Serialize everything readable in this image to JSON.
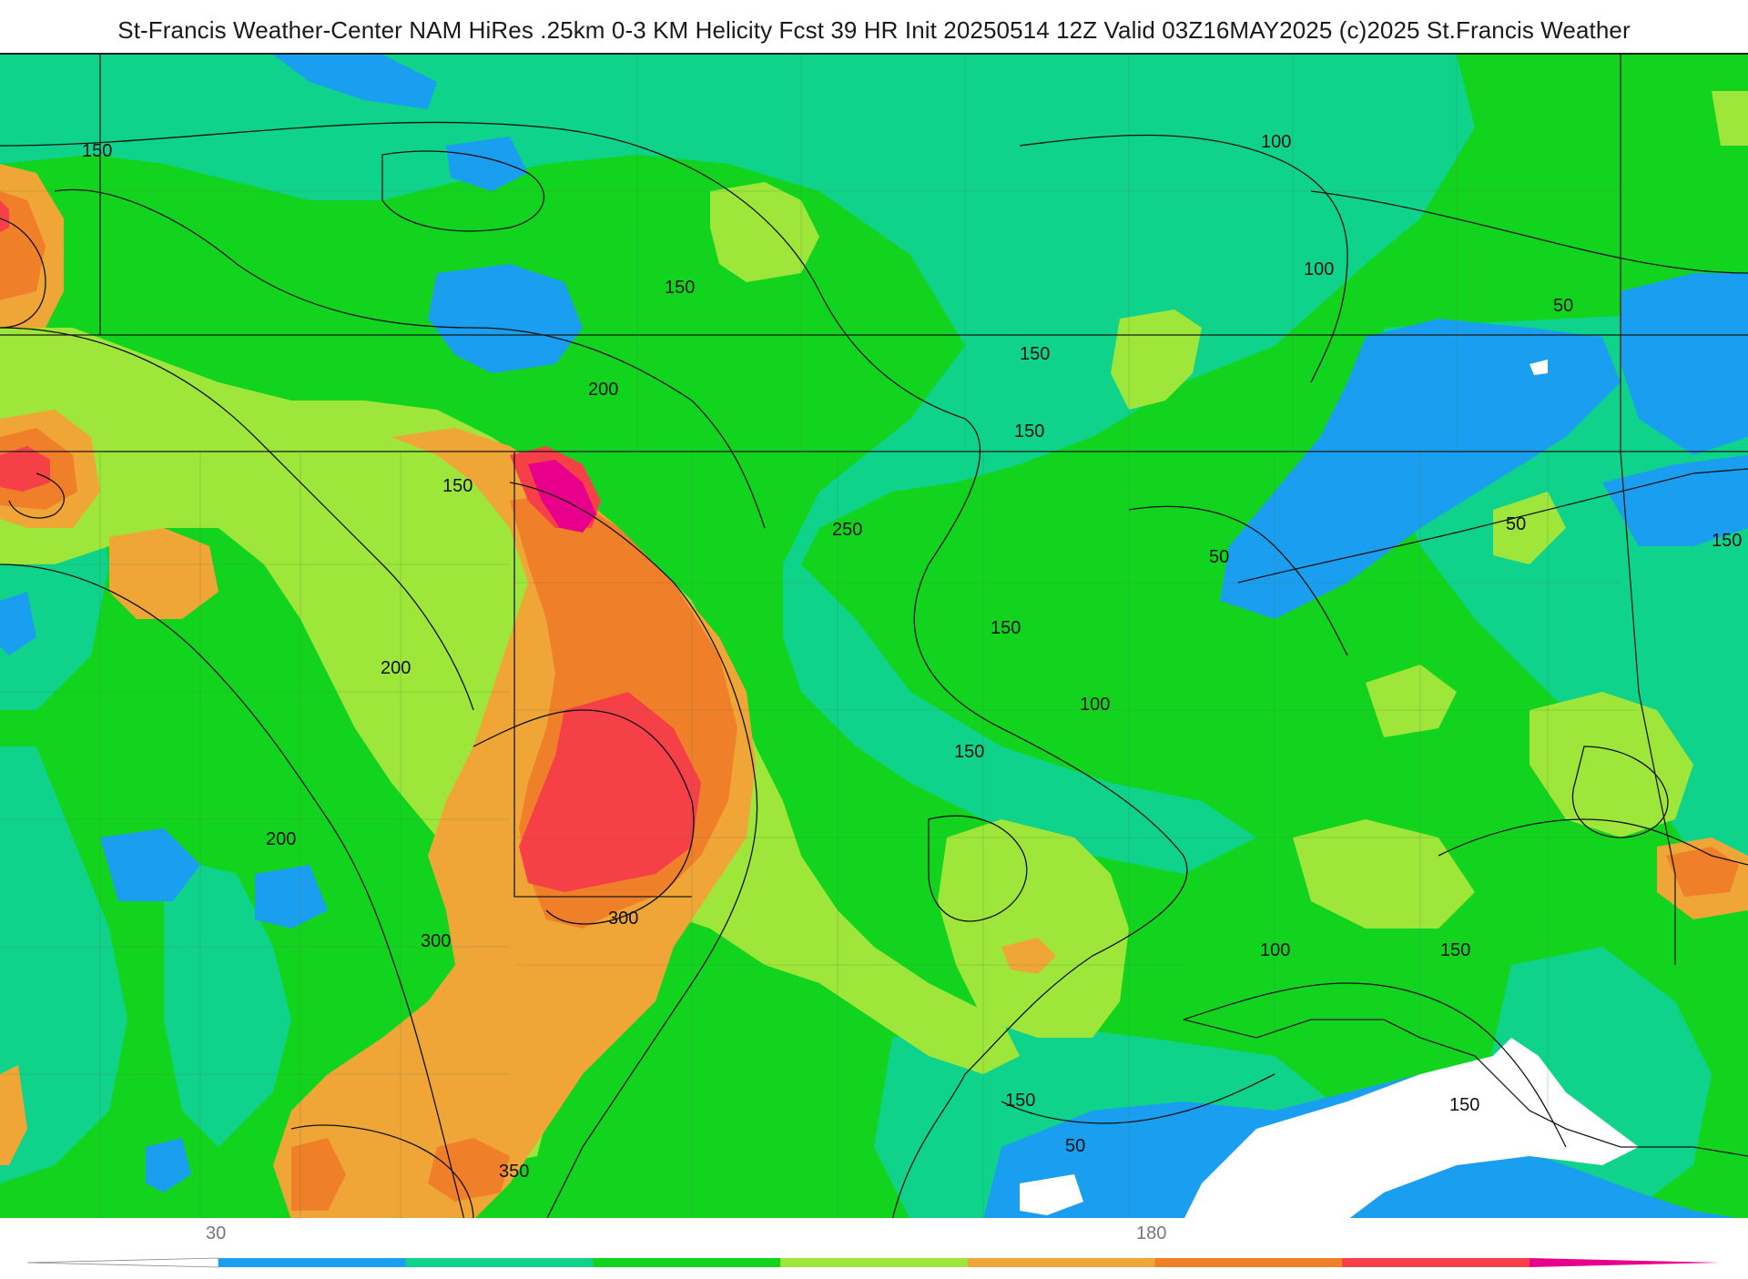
{
  "title": "St-Francis Weather-Center NAM HiRes .25km 0-3 KM Helicity Fcst 39 HR Init 20250514 12Z  Valid 03Z16MAY2025    (c)2025 St.Francis Weather",
  "contour_labels": [
    "150",
    "150",
    "200",
    "150",
    "150",
    "200",
    "200",
    "300",
    "300",
    "350",
    "250",
    "150",
    "150",
    "150",
    "150",
    "150",
    "100",
    "100",
    "100",
    "100",
    "50",
    "50",
    "50",
    "50",
    "150",
    "150"
  ],
  "colorbar": {
    "tick_labels": [
      "30",
      "180"
    ],
    "colors": [
      "#1a9ef0",
      "#0fd38a",
      "#12d41e",
      "#9fe63a",
      "#f0a636",
      "#f07f2a",
      "#f54048",
      "#e8008c"
    ]
  },
  "colors": {
    "land_base": "#18d34a",
    "low_white": "#ffffff",
    "blue": "#1a9ef0",
    "teal": "#0fd38a",
    "green": "#12d41e",
    "lime": "#9fe63a",
    "yellow_orange": "#f0a636",
    "orange": "#f07f2a",
    "red": "#f54048",
    "magenta": "#e8008c"
  }
}
